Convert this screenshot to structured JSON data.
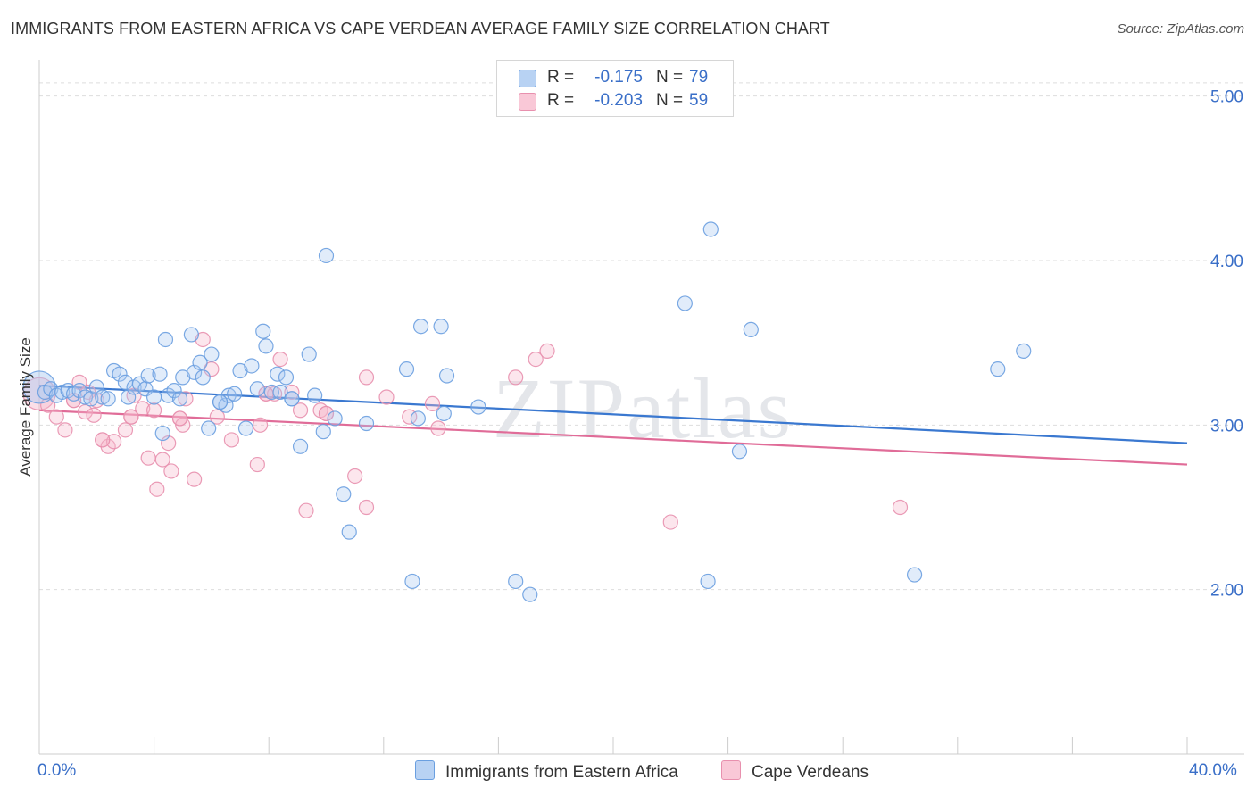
{
  "title": "IMMIGRANTS FROM EASTERN AFRICA VS CAPE VERDEAN AVERAGE FAMILY SIZE CORRELATION CHART",
  "source": "Source: ZipAtlas.com",
  "watermark": "ZIPatlas",
  "colors": {
    "blue_fill": "#a8c8f0",
    "blue_stroke": "#6a9fe0",
    "blue_line": "#3a78d0",
    "pink_fill": "#f6b8cb",
    "pink_stroke": "#e890ae",
    "pink_line": "#e06c98",
    "axis_label": "#3a6fc8",
    "grid": "#dddddd"
  },
  "legend": {
    "rows": [
      {
        "r_label": "R =",
        "r_value": "-0.175",
        "n_label": "N =",
        "n_value": "79",
        "color": "blue"
      },
      {
        "r_label": "R =",
        "r_value": "-0.203",
        "n_label": "N =",
        "n_value": "59",
        "color": "pink"
      }
    ]
  },
  "bottom_legend": {
    "blue_label": "Immigrants from Eastern Africa",
    "pink_label": "Cape Verdeans"
  },
  "chart_data": {
    "type": "scatter",
    "title": "IMMIGRANTS FROM EASTERN AFRICA VS CAPE VERDEAN AVERAGE FAMILY SIZE CORRELATION CHART",
    "xlabel": "",
    "ylabel": "Average Family Size",
    "xlim": [
      0,
      40
    ],
    "ylim": [
      1.0,
      5.15
    ],
    "x_tick_labels": [
      "0.0%",
      "40.0%"
    ],
    "y_ticks": [
      2.0,
      3.0,
      4.0,
      5.0
    ],
    "y_tick_labels": [
      "2.00",
      "3.00",
      "4.00",
      "5.00"
    ],
    "grid": "horizontal dashed",
    "legend_position": "top-center",
    "series": [
      {
        "name": "Immigrants from Eastern Africa",
        "color": "blue",
        "trend": {
          "x": [
            0,
            40
          ],
          "y": [
            3.24,
            2.89
          ]
        },
        "points": [
          {
            "x": 0.0,
            "y": 3.23,
            "big": true
          },
          {
            "x": 0.2,
            "y": 3.2
          },
          {
            "x": 0.4,
            "y": 3.22
          },
          {
            "x": 0.6,
            "y": 3.18
          },
          {
            "x": 0.8,
            "y": 3.2
          },
          {
            "x": 1.0,
            "y": 3.21
          },
          {
            "x": 1.2,
            "y": 3.19
          },
          {
            "x": 1.4,
            "y": 3.21
          },
          {
            "x": 1.6,
            "y": 3.17
          },
          {
            "x": 1.8,
            "y": 3.16
          },
          {
            "x": 2.0,
            "y": 3.23
          },
          {
            "x": 2.2,
            "y": 3.17
          },
          {
            "x": 2.4,
            "y": 3.16
          },
          {
            "x": 2.6,
            "y": 3.33
          },
          {
            "x": 2.8,
            "y": 3.31
          },
          {
            "x": 3.0,
            "y": 3.26
          },
          {
            "x": 3.1,
            "y": 3.17
          },
          {
            "x": 3.3,
            "y": 3.23
          },
          {
            "x": 3.5,
            "y": 3.25
          },
          {
            "x": 3.7,
            "y": 3.22
          },
          {
            "x": 3.8,
            "y": 3.3
          },
          {
            "x": 4.0,
            "y": 3.17
          },
          {
            "x": 4.2,
            "y": 3.31
          },
          {
            "x": 4.3,
            "y": 2.95
          },
          {
            "x": 4.4,
            "y": 3.52
          },
          {
            "x": 4.5,
            "y": 3.18
          },
          {
            "x": 4.7,
            "y": 3.21
          },
          {
            "x": 4.9,
            "y": 3.16
          },
          {
            "x": 5.0,
            "y": 3.29
          },
          {
            "x": 5.3,
            "y": 3.55
          },
          {
            "x": 5.4,
            "y": 3.32
          },
          {
            "x": 5.6,
            "y": 3.38
          },
          {
            "x": 5.7,
            "y": 3.29
          },
          {
            "x": 5.9,
            "y": 2.98
          },
          {
            "x": 6.0,
            "y": 3.43
          },
          {
            "x": 6.3,
            "y": 3.14
          },
          {
            "x": 6.5,
            "y": 3.12
          },
          {
            "x": 6.6,
            "y": 3.18
          },
          {
            "x": 6.8,
            "y": 3.19
          },
          {
            "x": 7.0,
            "y": 3.33
          },
          {
            "x": 7.2,
            "y": 2.98
          },
          {
            "x": 7.4,
            "y": 3.36
          },
          {
            "x": 7.6,
            "y": 3.22
          },
          {
            "x": 7.8,
            "y": 3.57
          },
          {
            "x": 7.9,
            "y": 3.48
          },
          {
            "x": 8.1,
            "y": 3.2
          },
          {
            "x": 8.3,
            "y": 3.31
          },
          {
            "x": 8.4,
            "y": 3.2
          },
          {
            "x": 8.6,
            "y": 3.29
          },
          {
            "x": 8.8,
            "y": 3.16
          },
          {
            "x": 9.1,
            "y": 2.87
          },
          {
            "x": 9.4,
            "y": 3.43
          },
          {
            "x": 9.6,
            "y": 3.18
          },
          {
            "x": 9.9,
            "y": 2.96
          },
          {
            "x": 10.0,
            "y": 4.03
          },
          {
            "x": 10.3,
            "y": 3.04
          },
          {
            "x": 10.6,
            "y": 2.58
          },
          {
            "x": 10.8,
            "y": 2.35
          },
          {
            "x": 11.4,
            "y": 3.01
          },
          {
            "x": 12.8,
            "y": 3.34
          },
          {
            "x": 13.0,
            "y": 2.05
          },
          {
            "x": 13.2,
            "y": 3.04
          },
          {
            "x": 13.3,
            "y": 3.6
          },
          {
            "x": 14.0,
            "y": 3.6
          },
          {
            "x": 14.1,
            "y": 3.07
          },
          {
            "x": 14.2,
            "y": 3.3
          },
          {
            "x": 15.3,
            "y": 3.11
          },
          {
            "x": 16.6,
            "y": 2.05
          },
          {
            "x": 17.1,
            "y": 1.97
          },
          {
            "x": 22.5,
            "y": 3.74
          },
          {
            "x": 23.3,
            "y": 2.05
          },
          {
            "x": 23.4,
            "y": 4.19
          },
          {
            "x": 24.4,
            "y": 2.84
          },
          {
            "x": 24.8,
            "y": 3.58
          },
          {
            "x": 30.5,
            "y": 2.09
          },
          {
            "x": 33.4,
            "y": 3.34
          },
          {
            "x": 34.3,
            "y": 3.45
          },
          {
            "x": 6.3,
            "y": 3.14
          },
          {
            "x": 8.8,
            "y": 3.16
          }
        ]
      },
      {
        "name": "Cape Verdeans",
        "color": "pink",
        "trend": {
          "x": [
            0,
            40
          ],
          "y": [
            3.09,
            2.76
          ]
        },
        "points": [
          {
            "x": 0.0,
            "y": 3.19,
            "big": true
          },
          {
            "x": 0.3,
            "y": 3.12
          },
          {
            "x": 0.6,
            "y": 3.05
          },
          {
            "x": 0.9,
            "y": 2.97
          },
          {
            "x": 1.2,
            "y": 3.15
          },
          {
            "x": 1.4,
            "y": 3.26
          },
          {
            "x": 1.6,
            "y": 3.08
          },
          {
            "x": 1.7,
            "y": 3.2
          },
          {
            "x": 1.9,
            "y": 3.06
          },
          {
            "x": 2.0,
            "y": 3.15
          },
          {
            "x": 2.2,
            "y": 2.91
          },
          {
            "x": 2.4,
            "y": 2.87
          },
          {
            "x": 2.6,
            "y": 2.9
          },
          {
            "x": 3.0,
            "y": 2.97
          },
          {
            "x": 3.2,
            "y": 3.05
          },
          {
            "x": 3.3,
            "y": 3.18
          },
          {
            "x": 3.6,
            "y": 3.1
          },
          {
            "x": 3.8,
            "y": 2.8
          },
          {
            "x": 4.0,
            "y": 3.09
          },
          {
            "x": 4.1,
            "y": 2.61
          },
          {
            "x": 4.3,
            "y": 2.79
          },
          {
            "x": 4.5,
            "y": 2.89
          },
          {
            "x": 4.6,
            "y": 2.72
          },
          {
            "x": 4.9,
            "y": 3.04
          },
          {
            "x": 5.0,
            "y": 3.0
          },
          {
            "x": 5.1,
            "y": 3.16
          },
          {
            "x": 5.4,
            "y": 2.67
          },
          {
            "x": 5.7,
            "y": 3.52
          },
          {
            "x": 6.0,
            "y": 3.34
          },
          {
            "x": 6.2,
            "y": 3.05
          },
          {
            "x": 6.7,
            "y": 2.91
          },
          {
            "x": 7.6,
            "y": 2.76
          },
          {
            "x": 7.7,
            "y": 3.0
          },
          {
            "x": 7.9,
            "y": 3.19
          },
          {
            "x": 8.2,
            "y": 3.19
          },
          {
            "x": 8.4,
            "y": 3.4
          },
          {
            "x": 8.8,
            "y": 3.2
          },
          {
            "x": 9.1,
            "y": 3.09
          },
          {
            "x": 9.3,
            "y": 2.48
          },
          {
            "x": 9.8,
            "y": 3.09
          },
          {
            "x": 10.0,
            "y": 3.07
          },
          {
            "x": 11.0,
            "y": 2.69
          },
          {
            "x": 11.4,
            "y": 2.5
          },
          {
            "x": 11.4,
            "y": 3.29
          },
          {
            "x": 12.1,
            "y": 3.17
          },
          {
            "x": 12.9,
            "y": 3.05
          },
          {
            "x": 13.7,
            "y": 3.13
          },
          {
            "x": 13.9,
            "y": 2.98
          },
          {
            "x": 16.6,
            "y": 3.29
          },
          {
            "x": 17.3,
            "y": 3.4
          },
          {
            "x": 17.7,
            "y": 3.45
          },
          {
            "x": 22.0,
            "y": 2.41
          },
          {
            "x": 30.0,
            "y": 2.5
          },
          {
            "x": 1.2,
            "y": 3.15
          },
          {
            "x": 2.2,
            "y": 2.91
          },
          {
            "x": 3.2,
            "y": 3.05
          },
          {
            "x": 4.9,
            "y": 3.04
          },
          {
            "x": 7.9,
            "y": 3.19
          },
          {
            "x": 10.0,
            "y": 3.07
          }
        ]
      }
    ]
  }
}
